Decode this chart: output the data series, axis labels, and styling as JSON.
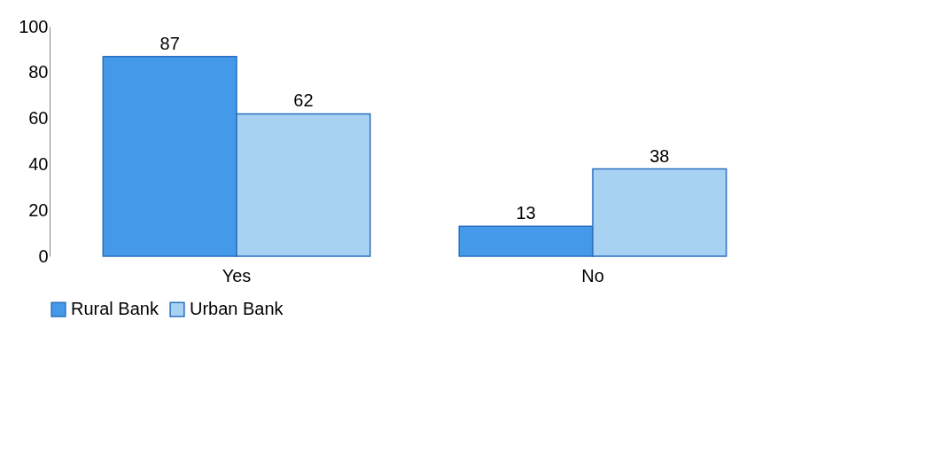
{
  "chart_data": {
    "type": "bar",
    "categories": [
      "Yes",
      "No"
    ],
    "series": [
      {
        "name": "Rural Bank",
        "color": "#4499e8",
        "values": [
          87,
          13
        ]
      },
      {
        "name": "Urban Bank",
        "color": "#a8d2f2",
        "values": [
          62,
          38
        ]
      }
    ],
    "ylim": [
      0,
      100
    ],
    "yticks": [
      0,
      20,
      40,
      60,
      80,
      100
    ],
    "data_labels": true,
    "legend": "bottom",
    "grid": false
  }
}
